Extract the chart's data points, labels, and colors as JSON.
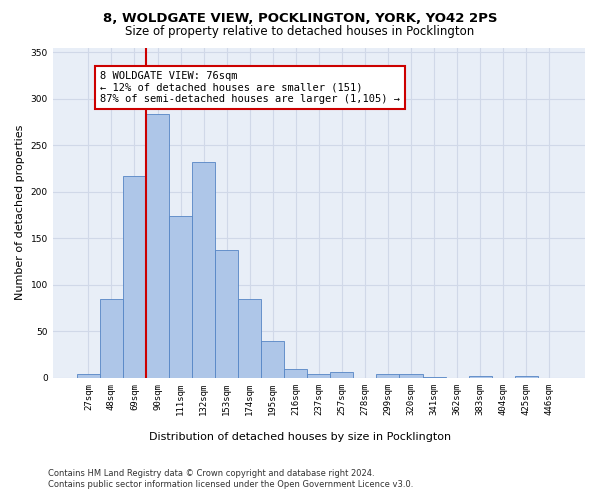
{
  "title_line1": "8, WOLDGATE VIEW, POCKLINGTON, YORK, YO42 2PS",
  "title_line2": "Size of property relative to detached houses in Pocklington",
  "xlabel": "Distribution of detached houses by size in Pocklington",
  "ylabel": "Number of detached properties",
  "categories": [
    "27sqm",
    "48sqm",
    "69sqm",
    "90sqm",
    "111sqm",
    "132sqm",
    "153sqm",
    "174sqm",
    "195sqm",
    "216sqm",
    "237sqm",
    "257sqm",
    "278sqm",
    "299sqm",
    "320sqm",
    "341sqm",
    "362sqm",
    "383sqm",
    "404sqm",
    "425sqm",
    "446sqm"
  ],
  "values": [
    4,
    85,
    217,
    284,
    174,
    232,
    137,
    85,
    40,
    10,
    4,
    6,
    0,
    4,
    4,
    1,
    0,
    2,
    0,
    2,
    0
  ],
  "bar_color": "#aec6e8",
  "bar_edge_color": "#5585c5",
  "annotation_text": "8 WOLDGATE VIEW: 76sqm\n← 12% of detached houses are smaller (151)\n87% of semi-detached houses are larger (1,105) →",
  "annotation_box_color": "#ffffff",
  "annotation_box_edgecolor": "#cc0000",
  "vline_color": "#cc0000",
  "ylim": [
    0,
    355
  ],
  "yticks": [
    0,
    50,
    100,
    150,
    200,
    250,
    300,
    350
  ],
  "grid_color": "#d0d8e8",
  "bg_color": "#e8eef7",
  "footer_line1": "Contains HM Land Registry data © Crown copyright and database right 2024.",
  "footer_line2": "Contains public sector information licensed under the Open Government Licence v3.0.",
  "title_fontsize": 9.5,
  "subtitle_fontsize": 8.5,
  "xlabel_fontsize": 8,
  "ylabel_fontsize": 8,
  "tick_fontsize": 6.5,
  "footer_fontsize": 6,
  "annotation_fontsize": 7.5
}
